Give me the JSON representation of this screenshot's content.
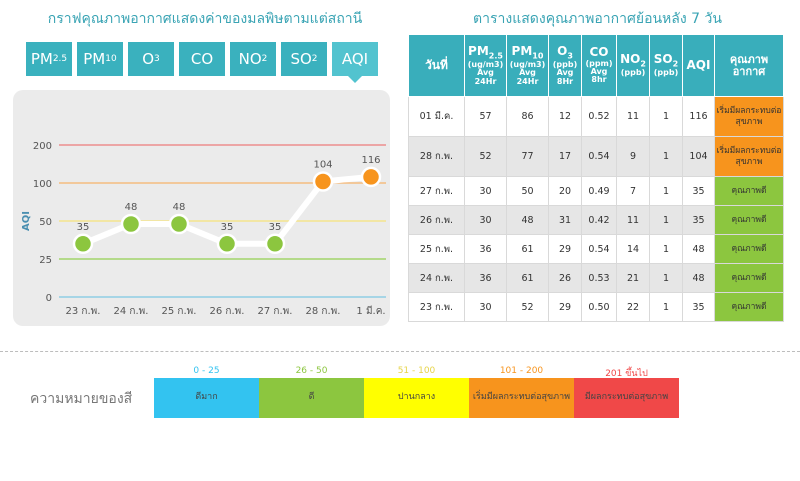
{
  "left_title": "กราฟคุณภาพอากาศแสดงค่าของมลพิษตามแต่สถานี",
  "right_title": "ตารางแสดงคุณภาพอากาศย้อนหลัง 7 วัน",
  "tabs": [
    {
      "label": "PM",
      "sub": "2.5",
      "active": false
    },
    {
      "label": "PM",
      "sub": "10",
      "active": false
    },
    {
      "label": "O",
      "sub": "3",
      "active": false
    },
    {
      "label": "CO",
      "sub": "",
      "active": false
    },
    {
      "label": "NO",
      "sub": "2",
      "active": false
    },
    {
      "label": "SO",
      "sub": "2",
      "active": false
    },
    {
      "label": "AQI",
      "sub": "",
      "active": true
    }
  ],
  "chart_data": {
    "type": "line",
    "ylabel": "AQI",
    "x": [
      "23 ก.พ.",
      "24 ก.พ.",
      "25 ก.พ.",
      "26 ก.พ.",
      "27 ก.พ.",
      "28 ก.พ.",
      "1 มี.ค."
    ],
    "series": [
      {
        "values": [
          35,
          48,
          48,
          35,
          35,
          104,
          116
        ]
      }
    ],
    "y_ticks": [
      0,
      25,
      50,
      100,
      200
    ],
    "reference_lines": [
      {
        "value": 25,
        "color": "#92d050"
      },
      {
        "value": 50,
        "color": "#f5e37a"
      },
      {
        "value": 100,
        "color": "#f7b26a"
      },
      {
        "value": 200,
        "color": "#ec7b7b"
      }
    ],
    "point_colors": [
      "#8cc63f",
      "#8cc63f",
      "#8cc63f",
      "#8cc63f",
      "#8cc63f",
      "#f7941d",
      "#f7941d"
    ],
    "grid": true
  },
  "table": {
    "headers": {
      "date": "วันที่",
      "pm25": {
        "main": "PM",
        "sub": "2.5",
        "unit": "(ug/m3)",
        "avg": "Avg",
        "period": "24Hr"
      },
      "pm10": {
        "main": "PM",
        "sub": "10",
        "unit": "(ug/m3)",
        "avg": "Avg",
        "period": "24Hr"
      },
      "o3": {
        "main": "O",
        "sub": "3",
        "unit": "(ppb)",
        "avg": "Avg",
        "period": "8Hr"
      },
      "co": {
        "main": "CO",
        "unit": "(ppm)",
        "avg": "Avg",
        "period": "8hr"
      },
      "no2": {
        "main": "NO",
        "sub": "2",
        "unit": "(ppb)"
      },
      "so2": {
        "main": "SO",
        "sub": "2",
        "unit": "(ppb)"
      },
      "aqi": "AQI",
      "quality": "คุณภาพ อากาศ"
    },
    "rows": [
      {
        "date": "01 มี.ค.",
        "pm25": "57",
        "pm10": "86",
        "o3": "12",
        "co": "0.52",
        "no2": "11",
        "so2": "1",
        "aqi": "116",
        "quality": "เริ่มมีผลกระทบต่อสุขภาพ",
        "qcolor": "#f7941d"
      },
      {
        "date": "28 ก.พ.",
        "pm25": "52",
        "pm10": "77",
        "o3": "17",
        "co": "0.54",
        "no2": "9",
        "so2": "1",
        "aqi": "104",
        "quality": "เริ่มมีผลกระทบต่อสุขภาพ",
        "qcolor": "#f7941d"
      },
      {
        "date": "27 ก.พ.",
        "pm25": "30",
        "pm10": "50",
        "o3": "20",
        "co": "0.49",
        "no2": "7",
        "so2": "1",
        "aqi": "35",
        "quality": "คุณภาพดี",
        "qcolor": "#8cc63f"
      },
      {
        "date": "26 ก.พ.",
        "pm25": "30",
        "pm10": "48",
        "o3": "31",
        "co": "0.42",
        "no2": "11",
        "so2": "1",
        "aqi": "35",
        "quality": "คุณภาพดี",
        "qcolor": "#8cc63f"
      },
      {
        "date": "25 ก.พ.",
        "pm25": "36",
        "pm10": "61",
        "o3": "29",
        "co": "0.54",
        "no2": "14",
        "so2": "1",
        "aqi": "48",
        "quality": "คุณภาพดี",
        "qcolor": "#8cc63f"
      },
      {
        "date": "24 ก.พ.",
        "pm25": "36",
        "pm10": "61",
        "o3": "26",
        "co": "0.53",
        "no2": "21",
        "so2": "1",
        "aqi": "48",
        "quality": "คุณภาพดี",
        "qcolor": "#8cc63f"
      },
      {
        "date": "23 ก.พ.",
        "pm25": "30",
        "pm10": "52",
        "o3": "29",
        "co": "0.50",
        "no2": "22",
        "so2": "1",
        "aqi": "35",
        "quality": "คุณภาพดี",
        "qcolor": "#8cc63f"
      }
    ]
  },
  "legend": {
    "label": "ความหมายของสี",
    "items": [
      {
        "range": "0 - 25",
        "text": "ดีมาก",
        "color": "#33c3f0",
        "range_color": "#33c3f0"
      },
      {
        "range": "26 - 50",
        "text": "ดี",
        "color": "#8cc63f",
        "range_color": "#8cc63f"
      },
      {
        "range": "51 - 100",
        "text": "ปานกลาง",
        "color": "#ffff00",
        "range_color": "#e6d44a"
      },
      {
        "range": "101 - 200",
        "text": "เริ่มมีผลกระทบต่อสุขภาพ",
        "color": "#f7941d",
        "range_color": "#f7941d"
      },
      {
        "range": "201 ขึ้นไป",
        "text": "มีผลกระทบต่อสุขภาพ",
        "color": "#f04848",
        "range_color": "#f04848"
      }
    ]
  }
}
